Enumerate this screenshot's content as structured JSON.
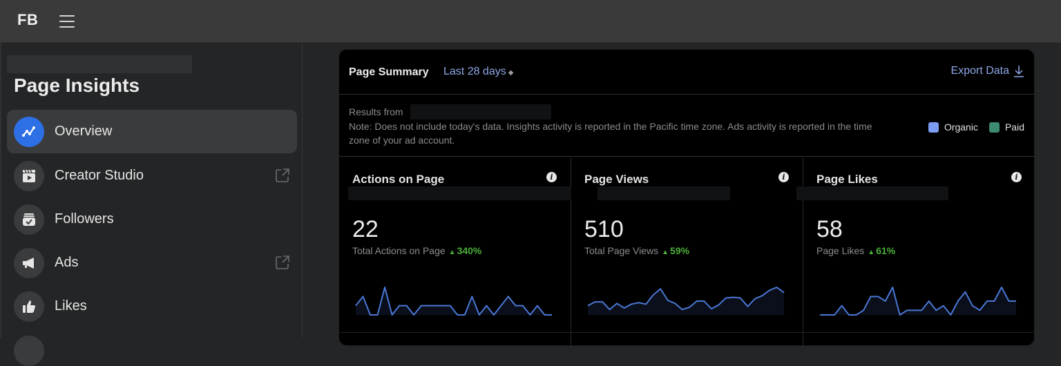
{
  "topbar": {
    "logo": "FB",
    "menu_icon": "hamburger-icon"
  },
  "sidebar": {
    "title": "Page Insights",
    "items": [
      {
        "label": "Overview",
        "icon": "trend-line-icon",
        "active": true,
        "external": false
      },
      {
        "label": "Creator Studio",
        "icon": "clapperboard-icon",
        "active": false,
        "external": true
      },
      {
        "label": "Followers",
        "icon": "check-box-icon",
        "active": false,
        "external": false
      },
      {
        "label": "Ads",
        "icon": "megaphone-icon",
        "active": false,
        "external": true
      },
      {
        "label": "Likes",
        "icon": "thumbs-up-icon",
        "active": false,
        "external": false
      }
    ]
  },
  "summary": {
    "title": "Page Summary",
    "range": "Last 28 days",
    "export_label": "Export Data",
    "results_from": "Results from",
    "note": "Note: Does not include today's data. Insights activity is reported in the Pacific time zone. Ads activity is reported in the time zone of your ad account.",
    "legend": [
      {
        "label": "Organic",
        "color": "#7b9cf2"
      },
      {
        "label": "Paid",
        "color": "#3c8a72"
      }
    ]
  },
  "metrics": [
    {
      "title": "Actions on Page",
      "value": "22",
      "sub_label": "Total Actions on Page",
      "change": "340%",
      "series": [
        1,
        2,
        0,
        0,
        3,
        0,
        1,
        1,
        0,
        1,
        1,
        1,
        1,
        1,
        0,
        0,
        2,
        0,
        1,
        0,
        1,
        2,
        1,
        1,
        0,
        1,
        0,
        0
      ]
    },
    {
      "title": "Page Views",
      "value": "510",
      "sub_label": "Total Page Views",
      "change": "59%",
      "series": [
        12,
        17,
        17,
        7,
        15,
        9,
        14,
        16,
        14,
        26,
        34,
        19,
        15,
        7,
        10,
        18,
        18,
        8,
        13,
        22,
        23,
        22,
        11,
        21,
        25,
        32,
        36,
        29
      ]
    },
    {
      "title": "Page Likes",
      "value": "58",
      "sub_label": "Page Likes",
      "change": "61%",
      "series": [
        0,
        0,
        0,
        2,
        0,
        0,
        1,
        4,
        4,
        3,
        6,
        0,
        1,
        1,
        1,
        3,
        1,
        2,
        0,
        3,
        5,
        2,
        1,
        3,
        3,
        6,
        3,
        3
      ]
    }
  ],
  "colors": {
    "accent": "#2d6fe5",
    "link": "#8fa8e8",
    "line": "#4a78d6",
    "positive": "#4caf3a"
  }
}
